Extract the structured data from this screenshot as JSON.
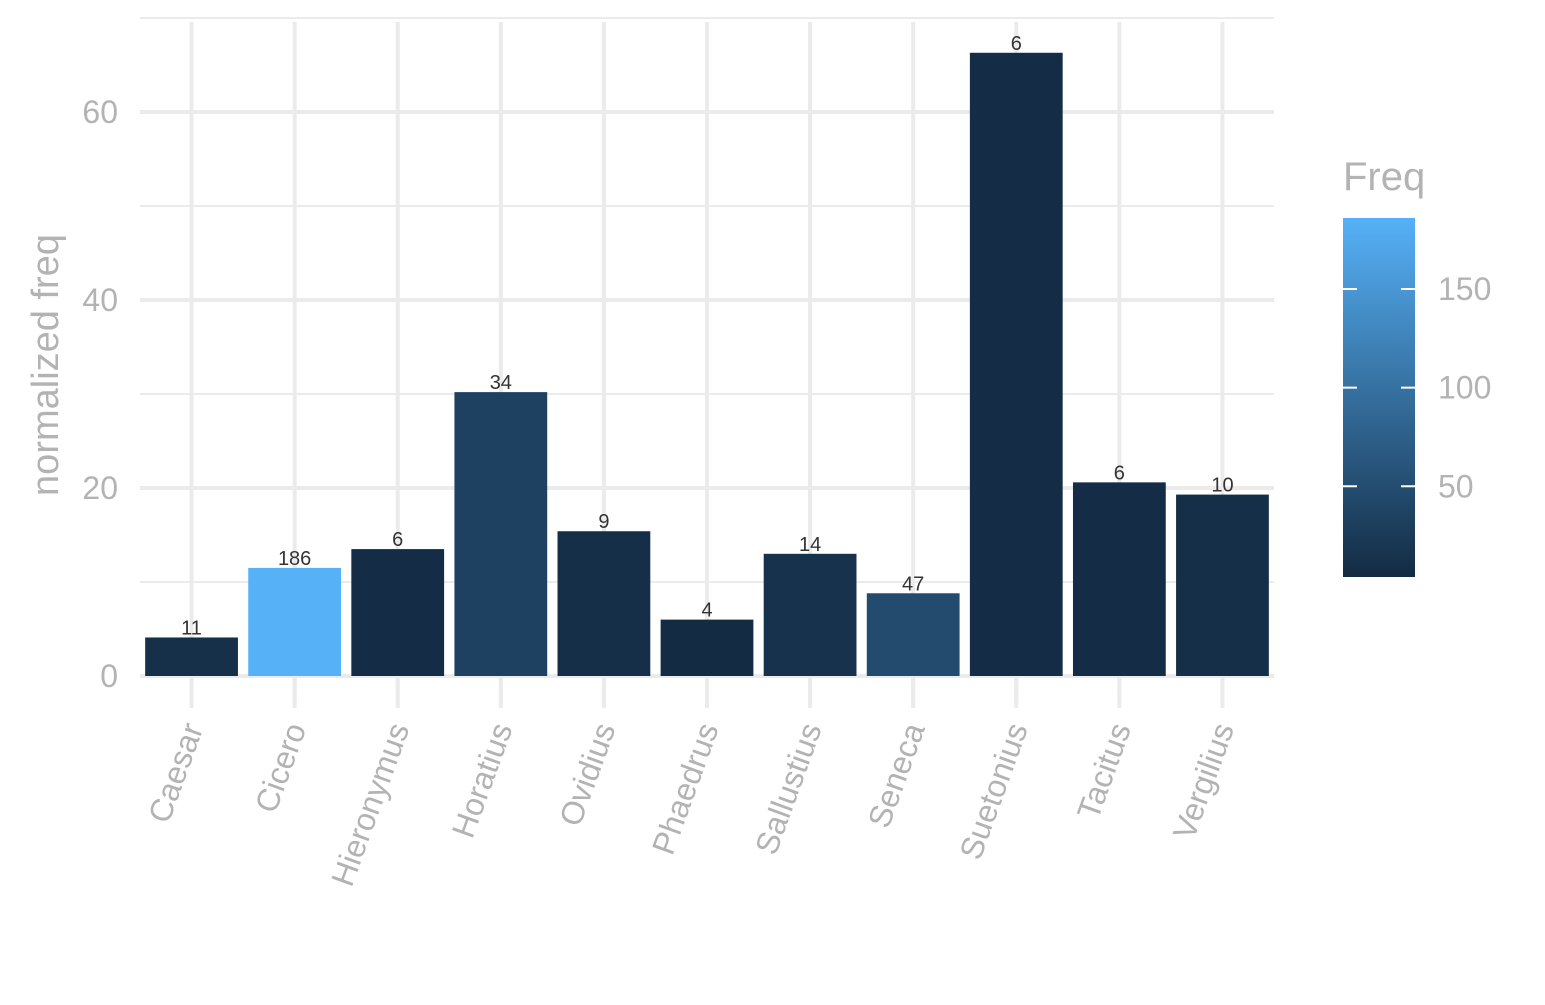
{
  "chart_data": {
    "type": "bar",
    "categories": [
      "Caesar",
      "Cicero",
      "Hieronymus",
      "Horatius",
      "Ovidius",
      "Phaedrus",
      "Sallustius",
      "Seneca",
      "Suetonius",
      "Tacitus",
      "Vergilius"
    ],
    "values": [
      4.1,
      11.5,
      13.5,
      30.2,
      15.4,
      6.0,
      13.0,
      8.8,
      66.3,
      20.6,
      19.3
    ],
    "freq": [
      11,
      186,
      6,
      34,
      9,
      4,
      14,
      47,
      6,
      6,
      10
    ],
    "freq_labels": [
      "11",
      "186",
      "6",
      "34",
      "9",
      "4",
      "14",
      "47",
      "6",
      "6",
      "10"
    ],
    "ylabel": "normalized freq",
    "xlabel": "",
    "ylim": [
      0,
      70
    ],
    "y_ticks": [
      0,
      20,
      40,
      60
    ],
    "y_tick_labels": [
      "0",
      "20",
      "40",
      "60"
    ],
    "grid": true,
    "legend": {
      "title": "Freq",
      "placement": "right",
      "range": [
        4,
        186
      ],
      "ticks": [
        50,
        100,
        150
      ],
      "tick_labels": [
        "50",
        "100",
        "150"
      ],
      "color_low": "#132B43",
      "color_high": "#56B1F7"
    }
  }
}
